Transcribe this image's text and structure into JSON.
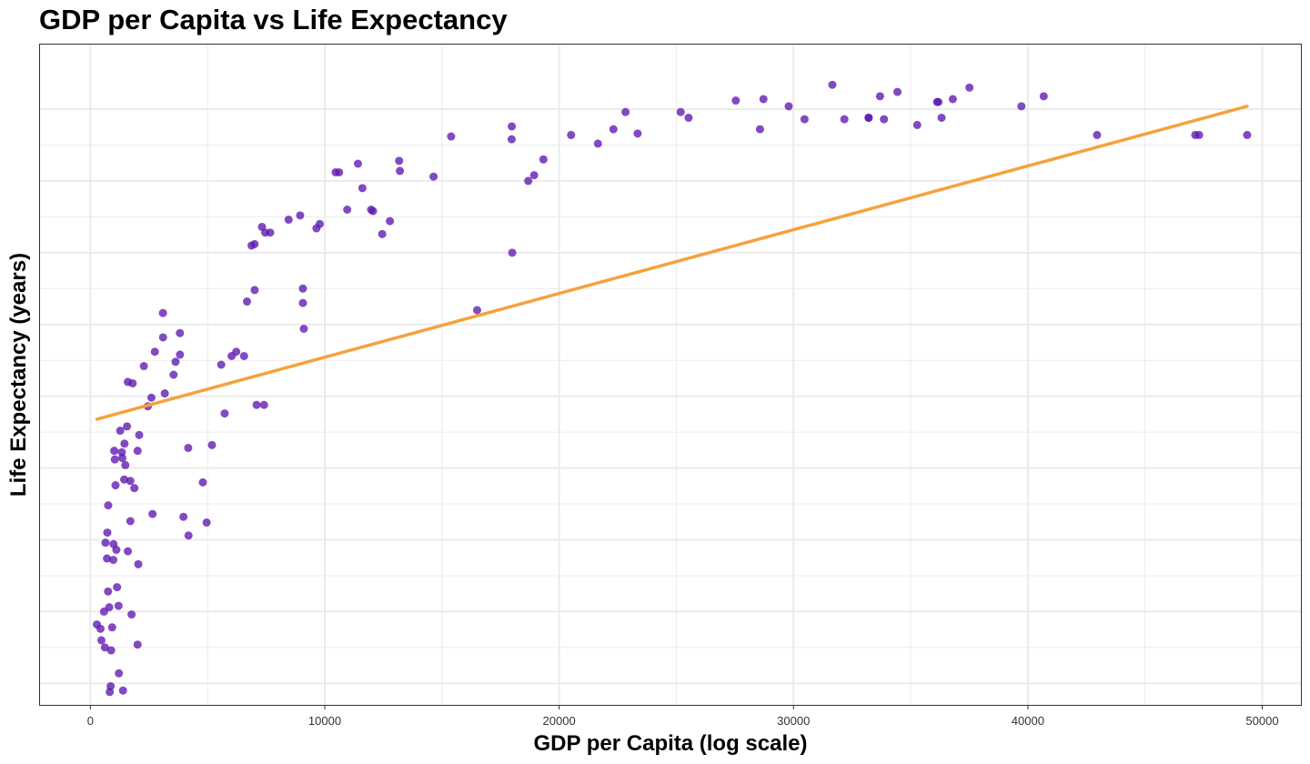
{
  "chart_data": {
    "type": "scatter",
    "title": "GDP per Capita vs Life Expectancy",
    "xlabel": "GDP per Capita (log scale)",
    "ylabel": "Life Expectancy (years)",
    "xlim": [
      -2150,
      51650
    ],
    "ylim": [
      38.5,
      84.5
    ],
    "x_ticks": [
      0,
      10000,
      20000,
      30000,
      40000,
      50000
    ],
    "x_tick_labels": [
      "0",
      "10000",
      "20000",
      "30000",
      "40000",
      "50000"
    ],
    "y_ticks_unlabeled": [
      40,
      45,
      50,
      55,
      60,
      65,
      70,
      75,
      80
    ],
    "grid": true,
    "colors": {
      "points": "#5e17b0",
      "trend": "#f5a23c",
      "grid": "#ebebeb",
      "border": "#333333"
    },
    "trend_line": {
      "x": [
        277,
        49357
      ],
      "y": [
        58.4,
        80.2
      ]
    },
    "points": [
      {
        "x": 277,
        "y": 44.1
      },
      {
        "x": 430,
        "y": 43.8
      },
      {
        "x": 469,
        "y": 43.0
      },
      {
        "x": 580,
        "y": 45.0
      },
      {
        "x": 619,
        "y": 42.5
      },
      {
        "x": 641,
        "y": 49.8
      },
      {
        "x": 706,
        "y": 48.7
      },
      {
        "x": 722,
        "y": 50.5
      },
      {
        "x": 753,
        "y": 46.4
      },
      {
        "x": 759,
        "y": 52.4
      },
      {
        "x": 803,
        "y": 45.3
      },
      {
        "x": 824,
        "y": 39.4
      },
      {
        "x": 863,
        "y": 39.8
      },
      {
        "x": 883,
        "y": 42.3
      },
      {
        "x": 926,
        "y": 43.9
      },
      {
        "x": 975,
        "y": 48.6
      },
      {
        "x": 986,
        "y": 49.7
      },
      {
        "x": 1017,
        "y": 56.2
      },
      {
        "x": 1042,
        "y": 55.6
      },
      {
        "x": 1071,
        "y": 53.8
      },
      {
        "x": 1107,
        "y": 49.3
      },
      {
        "x": 1137,
        "y": 46.7
      },
      {
        "x": 1201,
        "y": 45.4
      },
      {
        "x": 1216,
        "y": 40.7
      },
      {
        "x": 1271,
        "y": 57.6
      },
      {
        "x": 1339,
        "y": 56.1
      },
      {
        "x": 1362,
        "y": 55.7
      },
      {
        "x": 1391,
        "y": 39.5
      },
      {
        "x": 1441,
        "y": 54.2
      },
      {
        "x": 1454,
        "y": 56.7
      },
      {
        "x": 1490,
        "y": 55.2
      },
      {
        "x": 1561,
        "y": 57.9
      },
      {
        "x": 1596,
        "y": 61.0
      },
      {
        "x": 1598,
        "y": 49.2
      },
      {
        "x": 1702,
        "y": 54.1
      },
      {
        "x": 1704,
        "y": 51.3
      },
      {
        "x": 1756,
        "y": 44.8
      },
      {
        "x": 1803,
        "y": 60.9
      },
      {
        "x": 1876,
        "y": 53.6
      },
      {
        "x": 2013,
        "y": 42.7
      },
      {
        "x": 2014,
        "y": 56.2
      },
      {
        "x": 2042,
        "y": 48.3
      },
      {
        "x": 2082,
        "y": 57.3
      },
      {
        "x": 2281,
        "y": 62.1
      },
      {
        "x": 2449,
        "y": 59.3
      },
      {
        "x": 2602,
        "y": 59.9
      },
      {
        "x": 2650,
        "y": 51.8
      },
      {
        "x": 2749,
        "y": 63.1
      },
      {
        "x": 3095,
        "y": 65.8
      },
      {
        "x": 3099,
        "y": 64.1
      },
      {
        "x": 3173,
        "y": 60.2
      },
      {
        "x": 3548,
        "y": 61.5
      },
      {
        "x": 3632,
        "y": 62.4
      },
      {
        "x": 3820,
        "y": 64.4
      },
      {
        "x": 3822,
        "y": 62.9
      },
      {
        "x": 3970,
        "y": 51.6
      },
      {
        "x": 4173,
        "y": 56.4
      },
      {
        "x": 4185,
        "y": 50.3
      },
      {
        "x": 4797,
        "y": 54.0
      },
      {
        "x": 4959,
        "y": 51.2
      },
      {
        "x": 5186,
        "y": 56.6
      },
      {
        "x": 5581,
        "y": 62.2
      },
      {
        "x": 5728,
        "y": 58.8
      },
      {
        "x": 6025,
        "y": 62.8
      },
      {
        "x": 6223,
        "y": 63.1
      },
      {
        "x": 6557,
        "y": 62.8
      },
      {
        "x": 6681,
        "y": 66.6
      },
      {
        "x": 6873,
        "y": 70.5
      },
      {
        "x": 7006,
        "y": 70.6
      },
      {
        "x": 7008,
        "y": 67.4
      },
      {
        "x": 7092,
        "y": 59.4
      },
      {
        "x": 7320,
        "y": 71.8
      },
      {
        "x": 7408,
        "y": 59.4
      },
      {
        "x": 7458,
        "y": 71.4
      },
      {
        "x": 7670,
        "y": 71.4
      },
      {
        "x": 8458,
        "y": 72.3
      },
      {
        "x": 8948,
        "y": 72.6
      },
      {
        "x": 9066,
        "y": 66.5
      },
      {
        "x": 9066,
        "y": 67.5
      },
      {
        "x": 9106,
        "y": 64.7
      },
      {
        "x": 9645,
        "y": 71.7
      },
      {
        "x": 9787,
        "y": 72.0
      },
      {
        "x": 10461,
        "y": 75.6
      },
      {
        "x": 10611,
        "y": 75.6
      },
      {
        "x": 10957,
        "y": 73.0
      },
      {
        "x": 11415,
        "y": 76.2
      },
      {
        "x": 11605,
        "y": 74.5
      },
      {
        "x": 11978,
        "y": 73.0
      },
      {
        "x": 12057,
        "y": 72.9
      },
      {
        "x": 12451,
        "y": 71.3
      },
      {
        "x": 12779,
        "y": 72.2
      },
      {
        "x": 13172,
        "y": 76.4
      },
      {
        "x": 13206,
        "y": 75.7
      },
      {
        "x": 14641,
        "y": 75.3
      },
      {
        "x": 15390,
        "y": 78.1
      },
      {
        "x": 17974,
        "y": 77.9
      },
      {
        "x": 17980,
        "y": 78.8
      },
      {
        "x": 18681,
        "y": 75.0
      },
      {
        "x": 18933,
        "y": 75.4
      },
      {
        "x": 19329,
        "y": 76.5
      },
      {
        "x": 20510,
        "y": 78.2
      },
      {
        "x": 21655,
        "y": 77.6
      },
      {
        "x": 22316,
        "y": 78.6
      },
      {
        "x": 22833,
        "y": 79.8
      },
      {
        "x": 23348,
        "y": 78.3
      },
      {
        "x": 25185,
        "y": 79.8
      },
      {
        "x": 25523,
        "y": 79.4
      },
      {
        "x": 27538,
        "y": 80.6
      },
      {
        "x": 28570,
        "y": 78.6
      },
      {
        "x": 28718,
        "y": 80.7
      },
      {
        "x": 29796,
        "y": 80.2
      },
      {
        "x": 30470,
        "y": 79.3
      },
      {
        "x": 31657,
        "y": 81.7
      },
      {
        "x": 32170,
        "y": 79.3
      },
      {
        "x": 33203,
        "y": 79.4
      },
      {
        "x": 33207,
        "y": 79.4
      },
      {
        "x": 33692,
        "y": 80.9
      },
      {
        "x": 33860,
        "y": 79.3
      },
      {
        "x": 34435,
        "y": 81.2
      },
      {
        "x": 35278,
        "y": 78.9
      },
      {
        "x": 36126,
        "y": 80.5
      },
      {
        "x": 36181,
        "y": 80.5
      },
      {
        "x": 36319,
        "y": 79.4
      },
      {
        "x": 36798,
        "y": 80.7
      },
      {
        "x": 37506,
        "y": 81.5
      },
      {
        "x": 39725,
        "y": 80.2
      },
      {
        "x": 40676,
        "y": 80.9
      },
      {
        "x": 42952,
        "y": 78.2
      },
      {
        "x": 47143,
        "y": 78.2
      },
      {
        "x": 47307,
        "y": 78.2
      },
      {
        "x": 49357,
        "y": 78.2
      },
      {
        "x": 18000,
        "y": 70.0
      },
      {
        "x": 16500,
        "y": 66.0
      }
    ]
  }
}
